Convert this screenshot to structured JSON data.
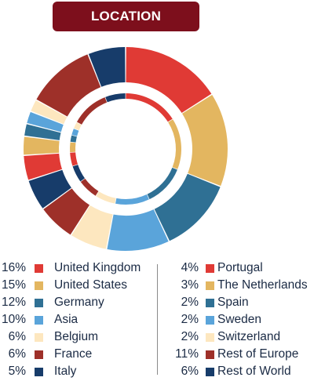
{
  "title": "LOCATION",
  "chart_data": {
    "type": "pie",
    "title": "LOCATION",
    "style": "donut",
    "legend_position": "bottom",
    "series": [
      {
        "name": "United Kingdom",
        "value": 16,
        "label": "16%",
        "color": "#e03a35"
      },
      {
        "name": "United States",
        "value": 15,
        "label": "15%",
        "color": "#e3b660"
      },
      {
        "name": "Germany",
        "value": 12,
        "label": "12%",
        "color": "#2f7094"
      },
      {
        "name": "Asia",
        "value": 10,
        "label": "10%",
        "color": "#5aa4da"
      },
      {
        "name": "Belgium",
        "value": 6,
        "label": "6%",
        "color": "#fde7bf"
      },
      {
        "name": "France",
        "value": 6,
        "label": "6%",
        "color": "#9e3029"
      },
      {
        "name": "Italy",
        "value": 5,
        "label": "5%",
        "color": "#173c6a"
      },
      {
        "name": "Portugal",
        "value": 4,
        "label": "4%",
        "color": "#e03a35"
      },
      {
        "name": "The Netherlands",
        "value": 3,
        "label": "3%",
        "color": "#e3b660"
      },
      {
        "name": "Spain",
        "value": 2,
        "label": "2%",
        "color": "#2f7094"
      },
      {
        "name": "Sweden",
        "value": 2,
        "label": "2%",
        "color": "#5aa4da"
      },
      {
        "name": "Switzerland",
        "value": 2,
        "label": "2%",
        "color": "#fde7bf"
      },
      {
        "name": "Rest of Europe",
        "value": 11,
        "label": "11%",
        "color": "#9e3029"
      },
      {
        "name": "Rest of World",
        "value": 6,
        "label": "6%",
        "color": "#173c6a"
      }
    ]
  }
}
